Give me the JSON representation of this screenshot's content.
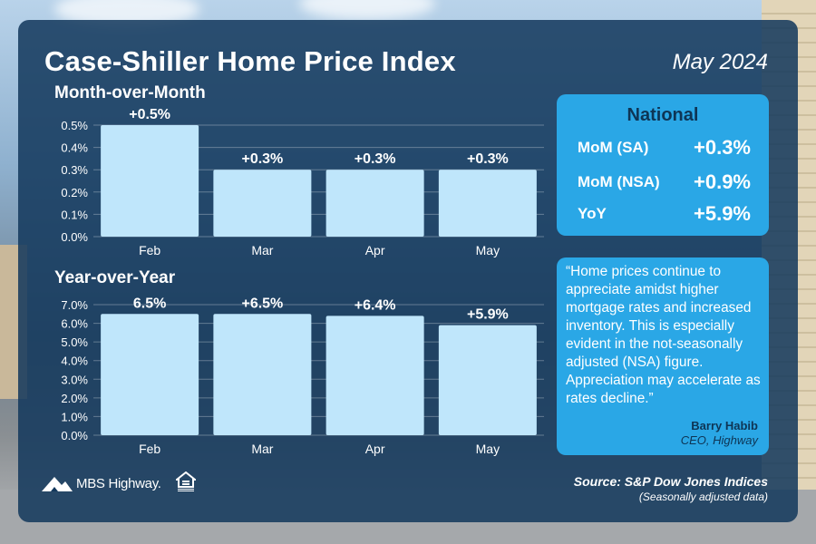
{
  "header": {
    "title": "Case-Shiller Home Price Index",
    "date": "May 2024"
  },
  "colors": {
    "panel": "#13385c",
    "bar": "#bfe6fb",
    "card": "#2aa7e6",
    "card_text": "#0e3555"
  },
  "chart_data": [
    {
      "type": "bar",
      "title": "Month-over-Month",
      "categories": [
        "Feb",
        "Mar",
        "Apr",
        "May"
      ],
      "values": [
        0.5,
        0.3,
        0.3,
        0.3
      ],
      "data_labels": [
        "+0.5%",
        "+0.3%",
        "+0.3%",
        "+0.3%"
      ],
      "yticks": [
        "0.0%",
        "0.1%",
        "0.2%",
        "0.3%",
        "0.4%",
        "0.5%"
      ],
      "ylim": [
        0,
        0.5
      ],
      "grid": true
    },
    {
      "type": "bar",
      "title": "Year-over-Year",
      "categories": [
        "Feb",
        "Mar",
        "Apr",
        "May"
      ],
      "values": [
        6.5,
        6.5,
        6.4,
        5.9
      ],
      "data_labels": [
        "6.5%",
        "+6.5%",
        "+6.4%",
        "+5.9%"
      ],
      "yticks": [
        "0.0%",
        "1.0%",
        "2.0%",
        "3.0%",
        "4.0%",
        "5.0%",
        "6.0%",
        "7.0%"
      ],
      "ylim": [
        0,
        7
      ],
      "grid": true
    }
  ],
  "national": {
    "title": "National",
    "rows": [
      {
        "label": "MoM (SA)",
        "value": "+0.3%"
      },
      {
        "label": "MoM (NSA)",
        "value": "+0.9%"
      },
      {
        "label": "YoY",
        "value": "+5.9%"
      }
    ]
  },
  "quote": {
    "text": "“Home prices continue to appreciate amidst higher mortgage rates and increased inventory. This is especially evident in the not-seasonally adjusted (NSA) figure. Appreciation may accelerate as rates decline.”",
    "name": "Barry Habib",
    "role": "CEO, Highway"
  },
  "footer": {
    "logo_text": "MBS Highway.",
    "source": "Source: S&P Dow Jones Indices",
    "note": "(Seasonally adjusted data)",
    "logo_icon": "mountain-logo-icon",
    "eho_icon": "equal-housing-icon"
  }
}
